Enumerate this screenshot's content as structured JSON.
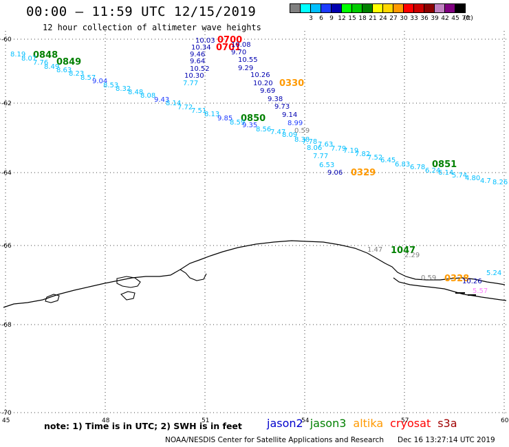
{
  "header": {
    "title": "00:00 – 11:59 UTC 12/15/2019",
    "subtitle": "12 hour collection of altimeter wave heights"
  },
  "legend": {
    "unit": "(ft)",
    "swatches": [
      {
        "color": "#808080",
        "label": ""
      },
      {
        "color": "#00ffff",
        "label": "3"
      },
      {
        "color": "#00bfff",
        "label": "6"
      },
      {
        "color": "#1e3cff",
        "label": "9"
      },
      {
        "color": "#0000b0",
        "label": "12"
      },
      {
        "color": "#00ff00",
        "label": "15"
      },
      {
        "color": "#00cc00",
        "label": "18"
      },
      {
        "color": "#008000",
        "label": "21"
      },
      {
        "color": "#ffff00",
        "label": "24"
      },
      {
        "color": "#ffd700",
        "label": "27"
      },
      {
        "color": "#ff9900",
        "label": "30"
      },
      {
        "color": "#ff0000",
        "label": "33"
      },
      {
        "color": "#cc0000",
        "label": "36"
      },
      {
        "color": "#8b0000",
        "label": "39"
      },
      {
        "color": "#c080c0",
        "label": "42"
      },
      {
        "color": "#800080",
        "label": "45"
      },
      {
        "color": "#000000",
        "label": "70"
      }
    ]
  },
  "map": {
    "lat_labels": [
      "-60",
      "-62",
      "-64",
      "-66",
      "-68",
      "-70"
    ],
    "lon_labels": [
      "45",
      "48",
      "51",
      "54",
      "57",
      "60"
    ]
  },
  "time_labels": [
    {
      "text": "0848",
      "color": "#008000"
    },
    {
      "text": "0849",
      "color": "#008000"
    },
    {
      "text": "0850",
      "color": "#008000"
    },
    {
      "text": "0851",
      "color": "#008000"
    },
    {
      "text": "1047",
      "color": "#008000"
    },
    {
      "text": "0700",
      "color": "#ff0000"
    },
    {
      "text": "0701",
      "color": "#ff0000"
    },
    {
      "text": "0330",
      "color": "#ff9900"
    },
    {
      "text": "0329",
      "color": "#ff9900"
    },
    {
      "text": "0328",
      "color": "#ff9900"
    }
  ],
  "observations": [
    {
      "text": "8.19",
      "color": "#00bfff"
    },
    {
      "text": "8.07",
      "color": "#00bfff"
    },
    {
      "text": "7.76",
      "color": "#00bfff"
    },
    {
      "text": "8.49",
      "color": "#00bfff"
    },
    {
      "text": "8.63",
      "color": "#00bfff"
    },
    {
      "text": "8.23",
      "color": "#00bfff"
    },
    {
      "text": "8.57",
      "color": "#00bfff"
    },
    {
      "text": "9.04",
      "color": "#1e3cff"
    },
    {
      "text": "8.53",
      "color": "#00bfff"
    },
    {
      "text": "8.32",
      "color": "#00bfff"
    },
    {
      "text": "8.48",
      "color": "#00bfff"
    },
    {
      "text": "8.08",
      "color": "#00bfff"
    },
    {
      "text": "9.43",
      "color": "#1e3cff"
    },
    {
      "text": "8.14",
      "color": "#00bfff"
    },
    {
      "text": "7.72",
      "color": "#00bfff"
    },
    {
      "text": "7.51",
      "color": "#00bfff"
    },
    {
      "text": "8.13",
      "color": "#00bfff"
    },
    {
      "text": "9.85",
      "color": "#1e3cff"
    },
    {
      "text": "8.59",
      "color": "#00bfff"
    },
    {
      "text": "9.35",
      "color": "#1e3cff"
    },
    {
      "text": "8.56",
      "color": "#00bfff"
    },
    {
      "text": "7.47",
      "color": "#00bfff"
    },
    {
      "text": "8.09",
      "color": "#00bfff"
    },
    {
      "text": "8.38",
      "color": "#00bfff"
    },
    {
      "text": "7.78",
      "color": "#00bfff"
    },
    {
      "text": "8.06",
      "color": "#00bfff"
    },
    {
      "text": "7.63",
      "color": "#00bfff"
    },
    {
      "text": "7.79",
      "color": "#00bfff"
    },
    {
      "text": "7.19",
      "color": "#00bfff"
    },
    {
      "text": "7.82",
      "color": "#00bfff"
    },
    {
      "text": "7.52",
      "color": "#00bfff"
    },
    {
      "text": "6.45",
      "color": "#00bfff"
    },
    {
      "text": "6.83",
      "color": "#00bfff"
    },
    {
      "text": "6.78",
      "color": "#00bfff"
    },
    {
      "text": "6.24",
      "color": "#00bfff"
    },
    {
      "text": "6.14",
      "color": "#00bfff"
    },
    {
      "text": "5.74",
      "color": "#00bfff"
    },
    {
      "text": "4.80",
      "color": "#00bfff"
    },
    {
      "text": "4.7",
      "color": "#00bfff"
    },
    {
      "text": "8.26",
      "color": "#00bfff"
    },
    {
      "text": "7.77",
      "color": "#00bfff"
    },
    {
      "text": "6.53",
      "color": "#00bfff"
    },
    {
      "text": "9.06",
      "color": "#0000b0"
    },
    {
      "text": "10.03",
      "color": "#0000b0"
    },
    {
      "text": "10.34",
      "color": "#0000b0"
    },
    {
      "text": "9.46",
      "color": "#0000b0"
    },
    {
      "text": "9.64",
      "color": "#0000b0"
    },
    {
      "text": "10.52",
      "color": "#0000b0"
    },
    {
      "text": "10.30",
      "color": "#0000b0"
    },
    {
      "text": "7.77",
      "color": "#00bfff"
    },
    {
      "text": "10.08",
      "color": "#0000b0"
    },
    {
      "text": "9.70",
      "color": "#0000b0"
    },
    {
      "text": "10.55",
      "color": "#0000b0"
    },
    {
      "text": "9.29",
      "color": "#0000b0"
    },
    {
      "text": "10.26",
      "color": "#0000b0"
    },
    {
      "text": "10.20",
      "color": "#0000b0"
    },
    {
      "text": "9.69",
      "color": "#0000b0"
    },
    {
      "text": "9.38",
      "color": "#0000b0"
    },
    {
      "text": "9.73",
      "color": "#0000b0"
    },
    {
      "text": "9.14",
      "color": "#0000b0"
    },
    {
      "text": "8.99",
      "color": "#1e3cff"
    },
    {
      "text": "0.59",
      "color": "#808080"
    },
    {
      "text": "1.47",
      "color": "#808080"
    },
    {
      "text": "2.29",
      "color": "#808080"
    },
    {
      "text": "0.59",
      "color": "#808080"
    },
    {
      "text": "10.26",
      "color": "#0000b0"
    },
    {
      "text": "5.24",
      "color": "#00bfff"
    },
    {
      "text": "5.57",
      "color": "#ffffff"
    }
  ],
  "note": "note: 1) Time is in UTC; 2) SWH is in feet",
  "satellites": [
    {
      "name": "jason2",
      "color": "#0000cc"
    },
    {
      "name": "jason3",
      "color": "#008000"
    },
    {
      "name": "altika",
      "color": "#ff9900"
    },
    {
      "name": "cryosat",
      "color": "#ff0000"
    },
    {
      "name": "s3a",
      "color": "#a00000"
    }
  ],
  "footer": {
    "left": "NOAA/NESDIS Center for Satellite Applications and Research",
    "right": "Dec 16 13:27:14 UTC 2019"
  }
}
